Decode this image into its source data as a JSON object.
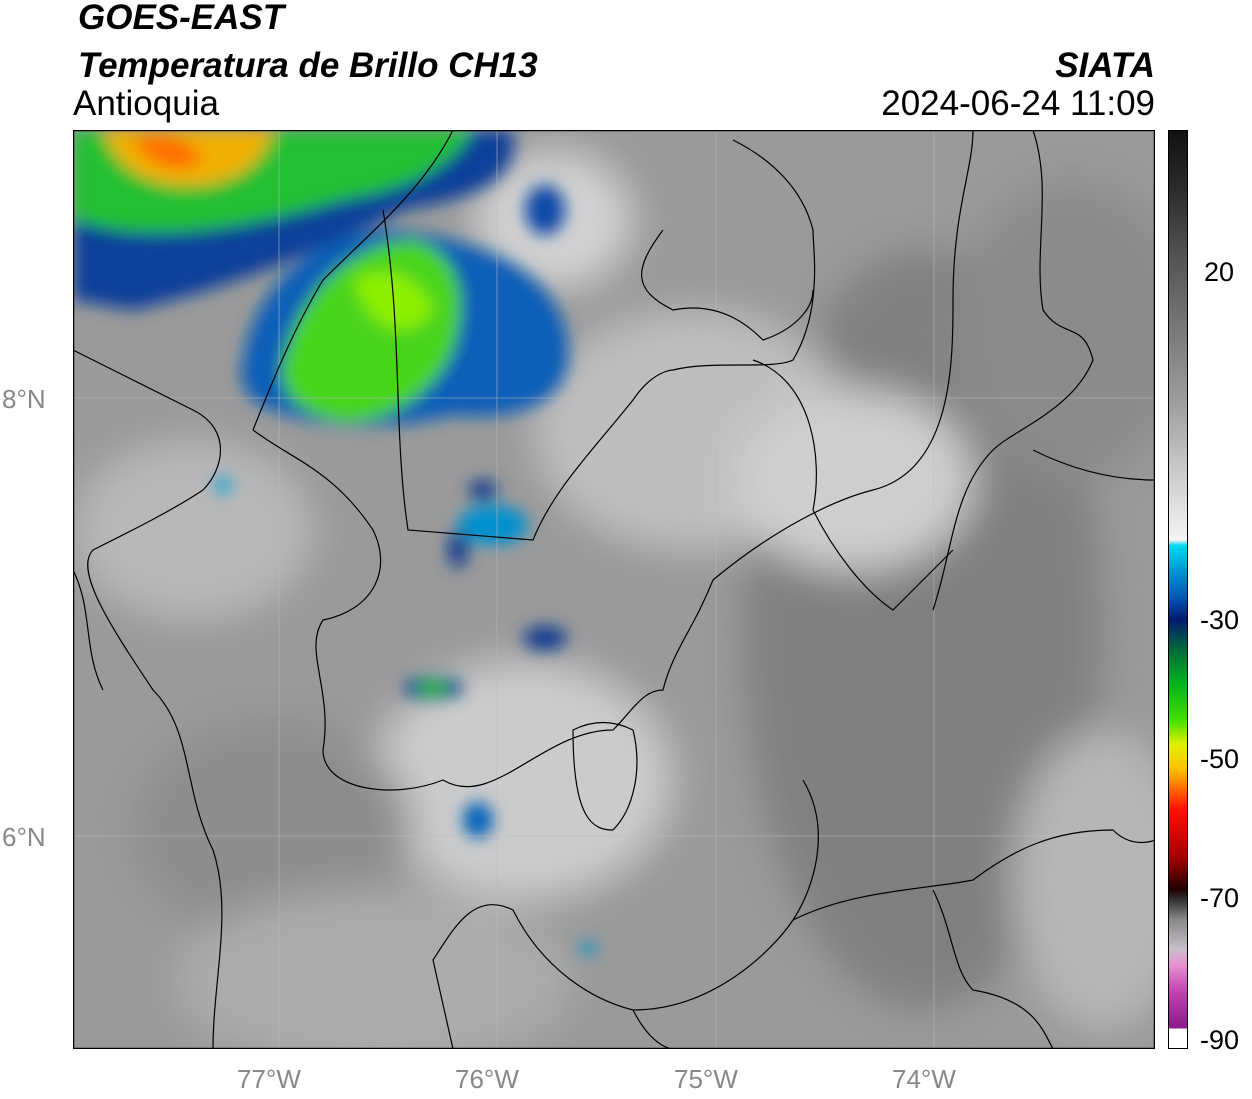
{
  "header": {
    "title": "GOES-EAST",
    "subtitle": "Temperatura de Brillo CH13",
    "region": "Antioquia",
    "source": "SIATA",
    "datetime": "2024-06-24 11:09"
  },
  "axes": {
    "lon_labels": [
      "77°W",
      "76°W",
      "75°W",
      "74°W"
    ],
    "lat_labels": [
      "8°N",
      "6°N"
    ]
  },
  "colorbar": {
    "labels": [
      20,
      -30,
      -50,
      -70,
      -90
    ]
  }
}
